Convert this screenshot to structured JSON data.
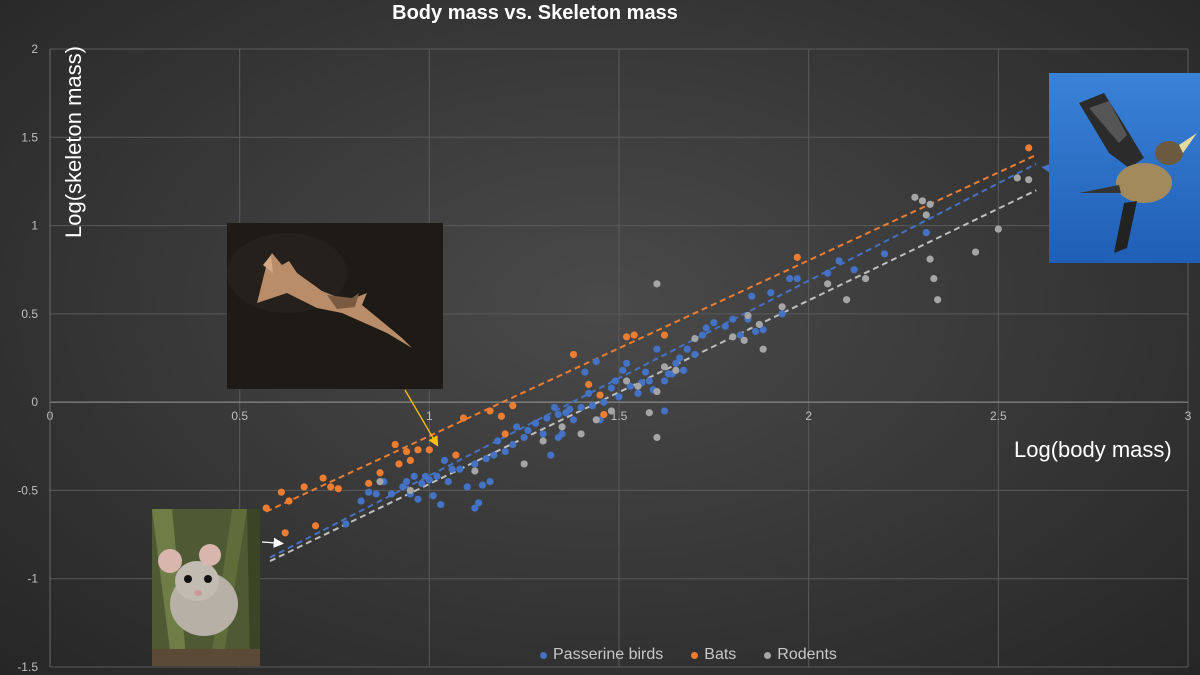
{
  "chart_data": {
    "type": "scatter",
    "title": "Body mass vs. Skeleton mass",
    "xlabel": "Log(body mass)",
    "ylabel": "Log(skeleton mass)",
    "xlim": [
      0,
      3
    ],
    "ylim": [
      -1.5,
      2
    ],
    "x_ticks": [
      "0",
      "0.5",
      "1",
      "1.5",
      "2",
      "2.5",
      "3"
    ],
    "y_ticks": [
      "-1.5",
      "-1",
      "-0.5",
      "0",
      "0.5",
      "1",
      "1.5",
      "2"
    ],
    "grid": "on",
    "legend_position": "bottom",
    "trendline_style": "dashed linear fit per series",
    "series": [
      {
        "name": "Passerine birds",
        "color": "#4472c4",
        "points": [
          [
            0.78,
            -0.69
          ],
          [
            0.82,
            -0.56
          ],
          [
            0.84,
            -0.51
          ],
          [
            0.86,
            -0.52
          ],
          [
            0.88,
            -0.45
          ],
          [
            0.9,
            -0.52
          ],
          [
            0.93,
            -0.48
          ],
          [
            0.94,
            -0.45
          ],
          [
            0.95,
            -0.52
          ],
          [
            0.96,
            -0.42
          ],
          [
            0.97,
            -0.55
          ],
          [
            0.98,
            -0.46
          ],
          [
            0.99,
            -0.42
          ],
          [
            1.0,
            -0.44
          ],
          [
            1.01,
            -0.53
          ],
          [
            1.02,
            -0.42
          ],
          [
            1.03,
            -0.58
          ],
          [
            1.04,
            -0.33
          ],
          [
            1.05,
            -0.45
          ],
          [
            1.06,
            -0.38
          ],
          [
            1.08,
            -0.38
          ],
          [
            1.1,
            -0.48
          ],
          [
            1.12,
            -0.35
          ],
          [
            1.13,
            -0.57
          ],
          [
            1.14,
            -0.47
          ],
          [
            1.15,
            -0.32
          ],
          [
            1.16,
            -0.45
          ],
          [
            1.17,
            -0.3
          ],
          [
            1.18,
            -0.22
          ],
          [
            1.2,
            -0.28
          ],
          [
            1.22,
            -0.24
          ],
          [
            1.23,
            -0.14
          ],
          [
            1.25,
            -0.2
          ],
          [
            1.26,
            -0.16
          ],
          [
            1.28,
            -0.12
          ],
          [
            1.3,
            -0.18
          ],
          [
            1.31,
            -0.09
          ],
          [
            1.32,
            -0.3
          ],
          [
            1.33,
            -0.03
          ],
          [
            1.34,
            -0.07
          ],
          [
            1.35,
            -0.18
          ],
          [
            1.36,
            -0.06
          ],
          [
            1.37,
            -0.04
          ],
          [
            1.38,
            -0.1
          ],
          [
            1.4,
            -0.03
          ],
          [
            1.41,
            0.17
          ],
          [
            1.42,
            0.05
          ],
          [
            1.43,
            -0.02
          ],
          [
            1.44,
            0.23
          ],
          [
            1.45,
            -0.1
          ],
          [
            1.46,
            0.0
          ],
          [
            1.48,
            0.08
          ],
          [
            1.49,
            0.12
          ],
          [
            1.5,
            0.03
          ],
          [
            1.51,
            0.18
          ],
          [
            1.52,
            0.22
          ],
          [
            1.53,
            0.09
          ],
          [
            1.55,
            0.05
          ],
          [
            1.56,
            0.11
          ],
          [
            1.57,
            0.17
          ],
          [
            1.58,
            0.12
          ],
          [
            1.59,
            0.07
          ],
          [
            1.6,
            0.3
          ],
          [
            1.62,
            0.12
          ],
          [
            1.63,
            0.16
          ],
          [
            1.64,
            0.16
          ],
          [
            1.65,
            0.22
          ],
          [
            1.66,
            0.25
          ],
          [
            1.67,
            0.18
          ],
          [
            1.68,
            0.3
          ],
          [
            1.7,
            0.27
          ],
          [
            1.72,
            0.38
          ],
          [
            1.73,
            0.42
          ],
          [
            1.75,
            0.45
          ],
          [
            1.78,
            0.43
          ],
          [
            1.8,
            0.47
          ],
          [
            1.82,
            0.38
          ],
          [
            1.84,
            0.47
          ],
          [
            1.85,
            0.6
          ],
          [
            1.86,
            0.4
          ],
          [
            1.88,
            0.41
          ],
          [
            1.9,
            0.62
          ],
          [
            1.93,
            0.5
          ],
          [
            1.95,
            0.7
          ],
          [
            1.97,
            0.7
          ],
          [
            2.05,
            0.73
          ],
          [
            2.08,
            0.8
          ],
          [
            2.12,
            0.75
          ],
          [
            2.2,
            0.84
          ],
          [
            2.31,
            0.96
          ],
          [
            1.62,
            -0.05
          ],
          [
            1.34,
            -0.2
          ],
          [
            1.12,
            -0.6
          ]
        ]
      },
      {
        "name": "Bats",
        "color": "#ed7d31",
        "points": [
          [
            0.57,
            -0.6
          ],
          [
            0.61,
            -0.51
          ],
          [
            0.62,
            -0.74
          ],
          [
            0.63,
            -0.56
          ],
          [
            0.67,
            -0.48
          ],
          [
            0.7,
            -0.7
          ],
          [
            0.72,
            -0.43
          ],
          [
            0.74,
            -0.48
          ],
          [
            0.76,
            -0.49
          ],
          [
            0.84,
            -0.46
          ],
          [
            0.87,
            -0.4
          ],
          [
            0.91,
            -0.24
          ],
          [
            0.92,
            -0.35
          ],
          [
            0.94,
            -0.28
          ],
          [
            0.95,
            -0.33
          ],
          [
            0.97,
            -0.27
          ],
          [
            1.0,
            -0.27
          ],
          [
            1.07,
            -0.3
          ],
          [
            1.09,
            -0.09
          ],
          [
            1.16,
            -0.05
          ],
          [
            1.19,
            -0.08
          ],
          [
            1.2,
            -0.18
          ],
          [
            1.22,
            -0.02
          ],
          [
            1.38,
            0.27
          ],
          [
            1.42,
            0.1
          ],
          [
            1.45,
            0.04
          ],
          [
            1.52,
            0.37
          ],
          [
            1.54,
            0.38
          ],
          [
            1.62,
            0.38
          ],
          [
            1.97,
            0.82
          ],
          [
            2.58,
            1.44
          ],
          [
            1.46,
            -0.07
          ]
        ]
      },
      {
        "name": "Rodents",
        "color": "#a5a5a5",
        "points": [
          [
            0.87,
            -0.45
          ],
          [
            0.95,
            -0.5
          ],
          [
            1.12,
            -0.39
          ],
          [
            1.25,
            -0.35
          ],
          [
            1.3,
            -0.22
          ],
          [
            1.35,
            -0.14
          ],
          [
            1.4,
            -0.18
          ],
          [
            1.44,
            -0.1
          ],
          [
            1.48,
            -0.05
          ],
          [
            1.52,
            0.12
          ],
          [
            1.55,
            0.09
          ],
          [
            1.58,
            -0.06
          ],
          [
            1.6,
            0.67
          ],
          [
            1.6,
            0.06
          ],
          [
            1.6,
            -0.2
          ],
          [
            1.62,
            0.2
          ],
          [
            1.65,
            0.18
          ],
          [
            1.7,
            0.36
          ],
          [
            1.8,
            0.37
          ],
          [
            1.83,
            0.35
          ],
          [
            1.84,
            0.49
          ],
          [
            1.87,
            0.44
          ],
          [
            1.88,
            0.3
          ],
          [
            1.93,
            0.54
          ],
          [
            2.05,
            0.67
          ],
          [
            2.1,
            0.58
          ],
          [
            2.15,
            0.7
          ],
          [
            2.28,
            1.16
          ],
          [
            2.3,
            1.14
          ],
          [
            2.31,
            1.06
          ],
          [
            2.32,
            1.12
          ],
          [
            2.32,
            0.81
          ],
          [
            2.33,
            0.7
          ],
          [
            2.34,
            0.58
          ],
          [
            2.44,
            0.85
          ],
          [
            2.5,
            0.98
          ],
          [
            2.55,
            1.27
          ],
          [
            2.58,
            1.26
          ]
        ]
      }
    ],
    "trendlines": [
      {
        "series": "Passerine birds",
        "x": [
          0.58,
          2.6
        ],
        "y": [
          -0.88,
          1.35
        ],
        "color": "#4472c4"
      },
      {
        "series": "Bats",
        "x": [
          0.57,
          2.6
        ],
        "y": [
          -0.62,
          1.4
        ],
        "color": "#ed7d31"
      },
      {
        "series": "Rodents",
        "x": [
          0.58,
          2.6
        ],
        "y": [
          -0.9,
          1.2
        ],
        "color": "#bfbfbf"
      }
    ],
    "annotation_arrows": [
      {
        "from": "bat-photo",
        "to_series": "Bats",
        "color": "#ffc000"
      },
      {
        "from": "mouse-photo",
        "to_series": "Rodents",
        "color": "#ffffff"
      },
      {
        "from": "bird-photo",
        "to_series": "Passerine birds",
        "color": "#4472c4"
      }
    ]
  },
  "images": {
    "bat": "bat-photo",
    "bird": "bird-photo",
    "mouse": "mouse-photo"
  }
}
